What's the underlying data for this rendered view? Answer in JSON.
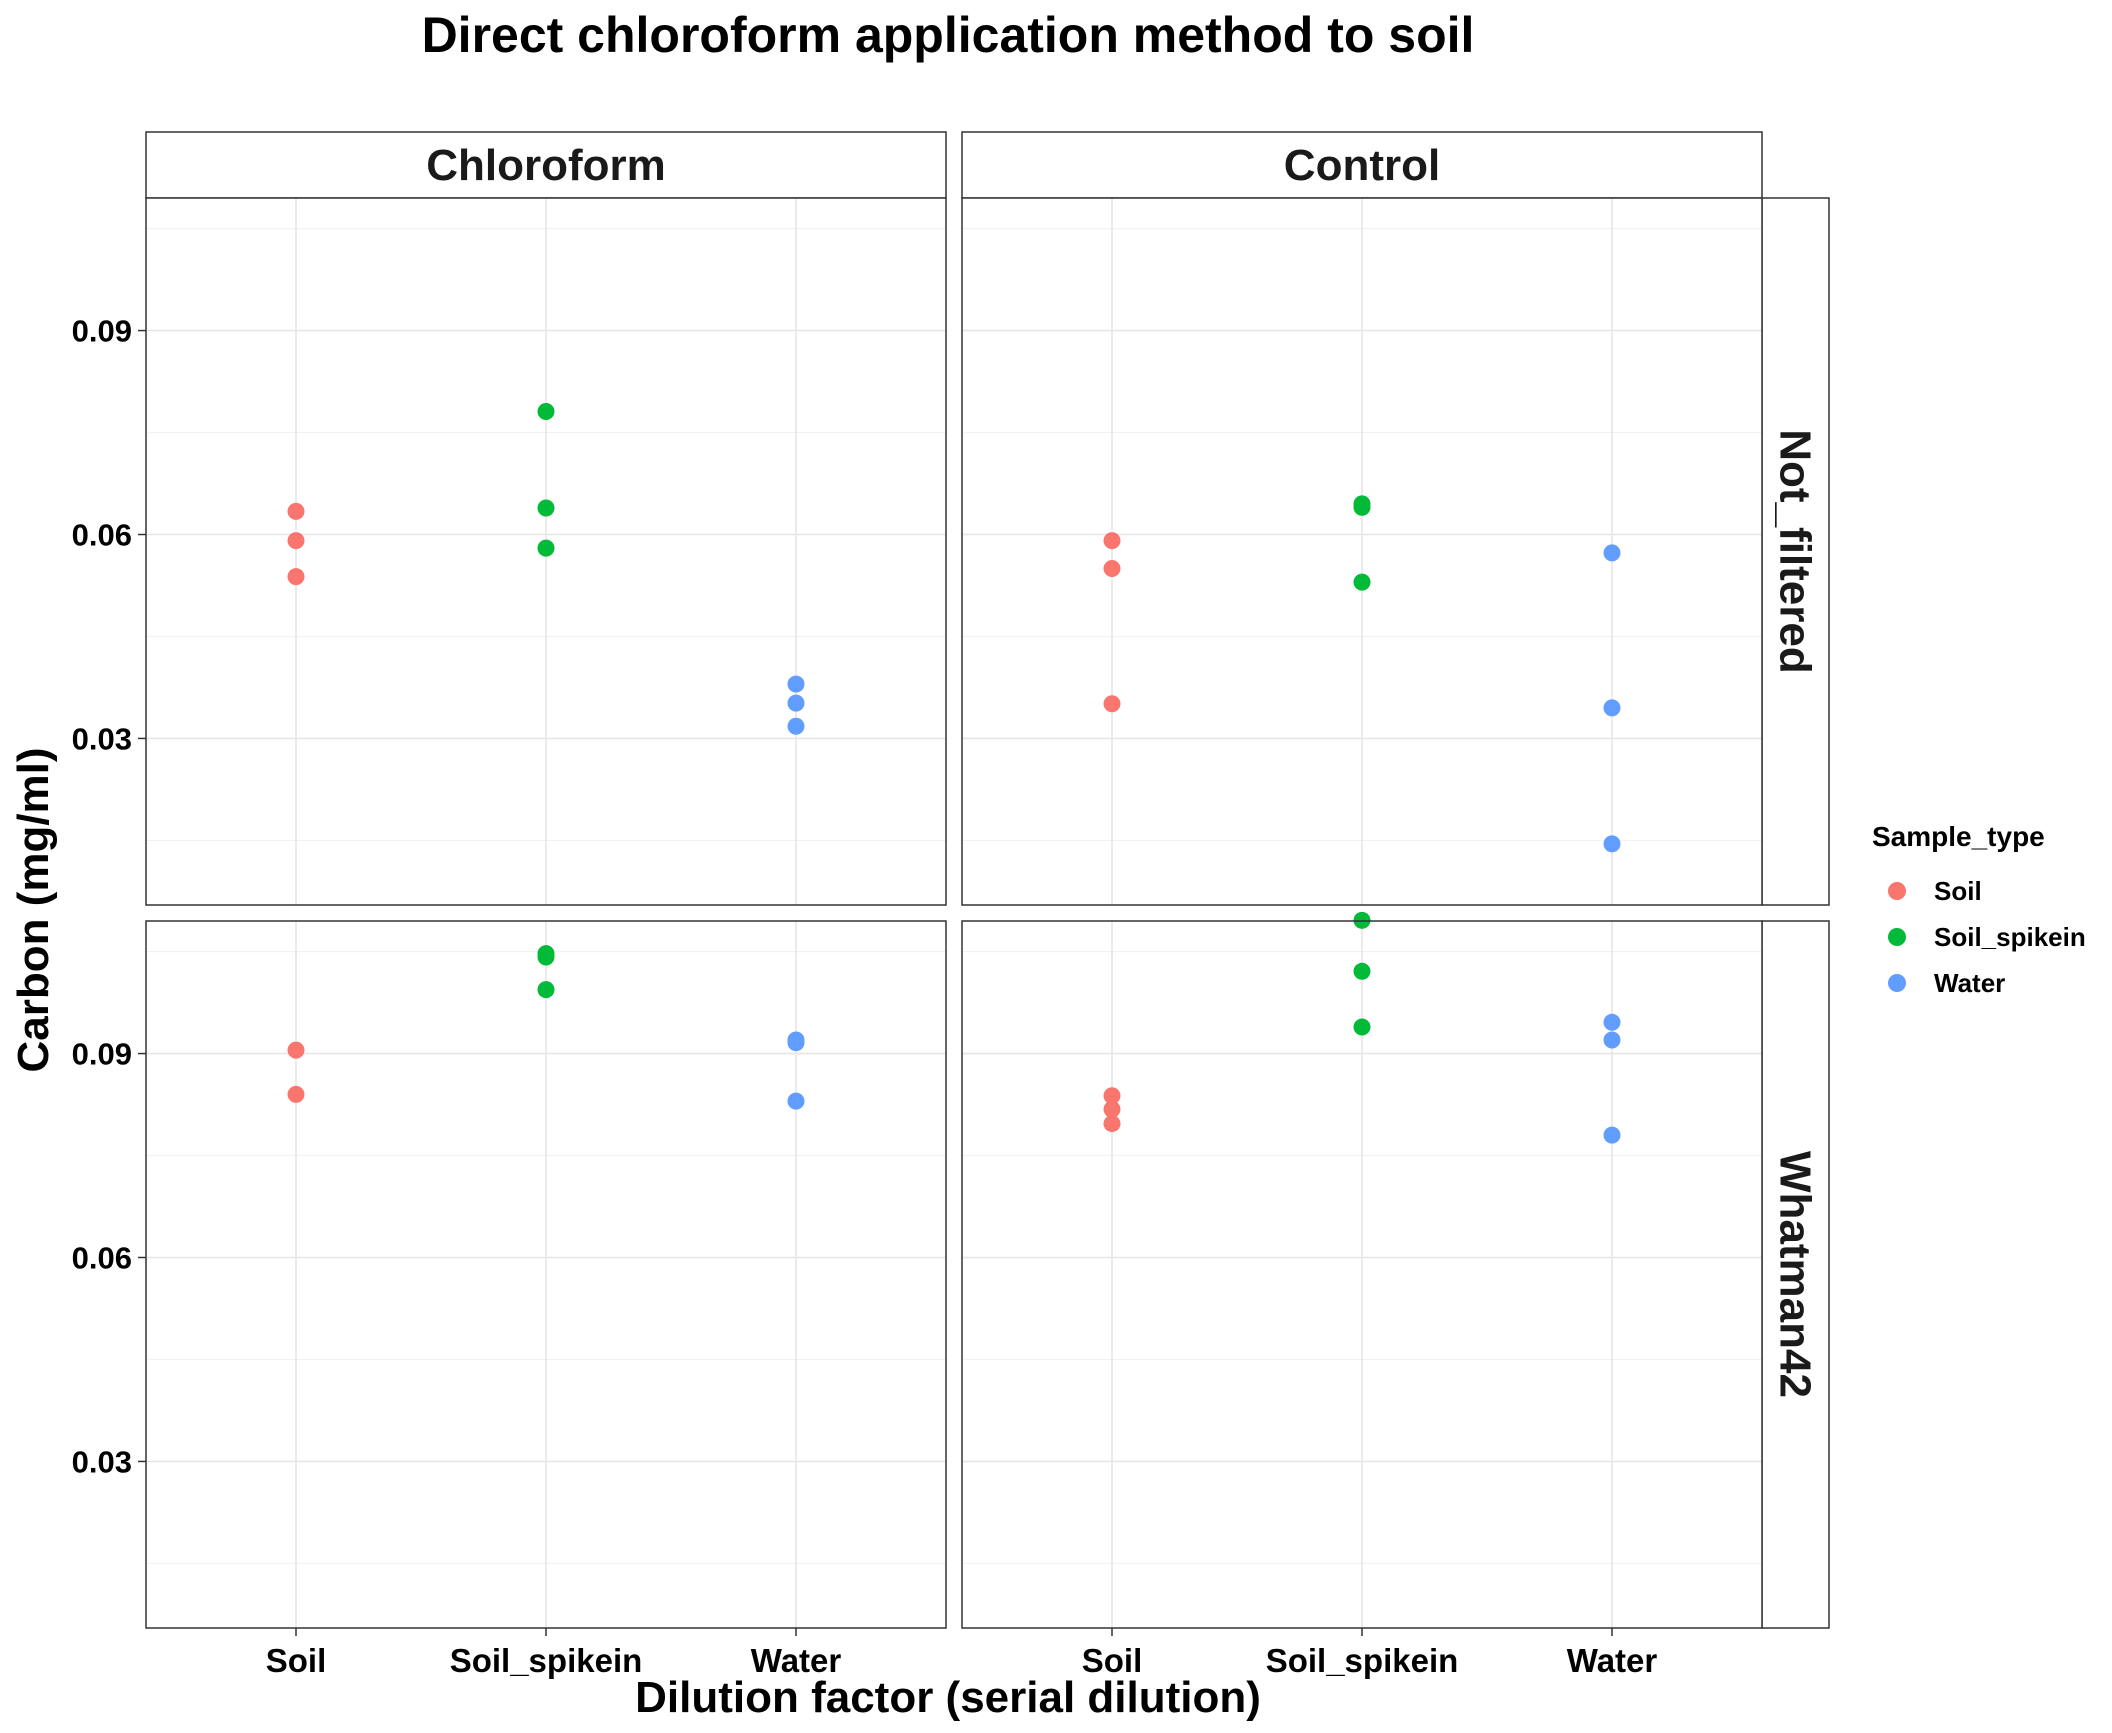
{
  "chart_data": {
    "type": "scatter",
    "title": "Direct chloroform application method to soil",
    "xlabel": "Dilution factor (serial dilution)",
    "ylabel": "Carbon (mg/ml)",
    "categories": [
      "Soil",
      "Soil_spikein",
      "Water"
    ],
    "ylim": [
      0.0055,
      0.1095
    ],
    "yticks": [
      "0.03",
      "0.06",
      "0.09"
    ],
    "ytick_values": [
      0.03,
      0.06,
      0.09
    ],
    "grid": true,
    "legend": {
      "title": "Sample_type",
      "position": "right",
      "items": [
        {
          "label": "Soil",
          "color": "#F8766D"
        },
        {
          "label": "Soil_spikein",
          "color": "#00BA38"
        },
        {
          "label": "Water",
          "color": "#619CFF"
        }
      ]
    },
    "facets": {
      "columns": [
        "Chloroform",
        "Control"
      ],
      "rows": [
        "Not_filtered",
        "Whatman42"
      ]
    },
    "panels": [
      {
        "column": "Chloroform",
        "row": "Not_filtered",
        "series": [
          {
            "name": "Soil",
            "x": [
              "Soil",
              "Soil",
              "Soil"
            ],
            "y": [
              0.0634,
              0.0591,
              0.0538
            ]
          },
          {
            "name": "Soil_spikein",
            "x": [
              "Soil_spikein",
              "Soil_spikein",
              "Soil_spikein"
            ],
            "y": [
              0.0781,
              0.0639,
              0.058
            ]
          },
          {
            "name": "Water",
            "x": [
              "Water",
              "Water",
              "Water"
            ],
            "y": [
              0.038,
              0.0352,
              0.0318
            ]
          }
        ]
      },
      {
        "column": "Control",
        "row": "Not_filtered",
        "series": [
          {
            "name": "Soil",
            "x": [
              "Soil",
              "Soil",
              "Soil"
            ],
            "y": [
              0.0591,
              0.055,
              0.0351
            ]
          },
          {
            "name": "Soil_spikein",
            "x": [
              "Soil_spikein",
              "Soil_spikein",
              "Soil_spikein"
            ],
            "y": [
              0.0645,
              0.064,
              0.053
            ]
          },
          {
            "name": "Water",
            "x": [
              "Water",
              "Water",
              "Water"
            ],
            "y": [
              0.0573,
              0.0345,
              0.0145
            ]
          }
        ]
      },
      {
        "column": "Chloroform",
        "row": "Whatman42",
        "series": [
          {
            "name": "Soil",
            "x": [
              "Soil",
              "Soil"
            ],
            "y": [
              0.0905,
              0.084
            ]
          },
          {
            "name": "Soil_spikein",
            "x": [
              "Soil_spikein",
              "Soil_spikein",
              "Soil_spikein"
            ],
            "y": [
              0.1047,
              0.1042,
              0.0994
            ]
          },
          {
            "name": "Water",
            "x": [
              "Water",
              "Water",
              "Water"
            ],
            "y": [
              0.092,
              0.0916,
              0.083
            ]
          }
        ]
      },
      {
        "column": "Control",
        "row": "Whatman42",
        "series": [
          {
            "name": "Soil",
            "x": [
              "Soil",
              "Soil",
              "Soil"
            ],
            "y": [
              0.0838,
              0.0818,
              0.0797
            ]
          },
          {
            "name": "Soil_spikein",
            "x": [
              "Soil_spikein",
              "Soil_spikein",
              "Soil_spikein"
            ],
            "y": [
              0.1096,
              0.1021,
              0.0939
            ]
          },
          {
            "name": "Water",
            "x": [
              "Water",
              "Water",
              "Water"
            ],
            "y": [
              0.0946,
              0.092,
              0.078
            ]
          }
        ]
      }
    ]
  }
}
